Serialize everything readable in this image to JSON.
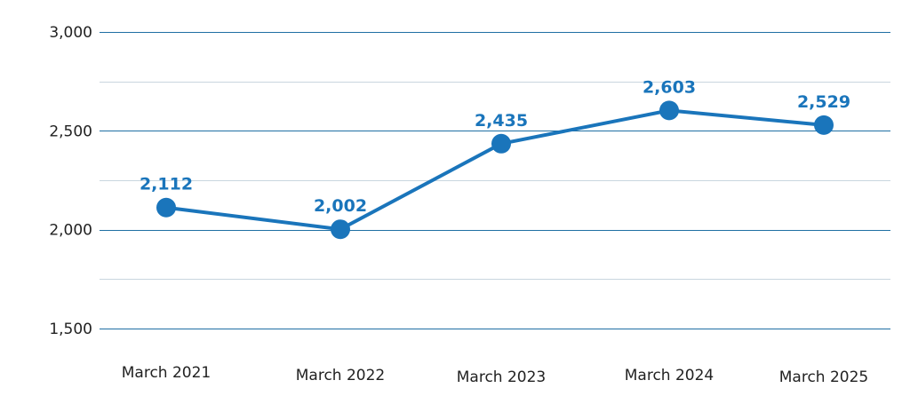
{
  "chart_data": {
    "type": "line",
    "categories": [
      "March 2021",
      "March 2022",
      "March 2023",
      "March 2024",
      "March 2025"
    ],
    "values": [
      2112,
      2002,
      2435,
      2603,
      2529
    ],
    "data_labels": [
      "2,112",
      "2,002",
      "2,435",
      "2,603",
      "2,529"
    ],
    "y_ticks": [
      {
        "value": 1500,
        "label": "1,500"
      },
      {
        "value": 2000,
        "label": "2,000"
      },
      {
        "value": 2500,
        "label": "2,500"
      },
      {
        "value": 3000,
        "label": "3,000"
      }
    ],
    "minor_gridlines": [
      1750,
      2250,
      2750
    ],
    "ylim": [
      1500,
      3000
    ],
    "title": "",
    "xlabel": "",
    "ylabel": "",
    "grid": true,
    "color": "#1a75bb"
  }
}
